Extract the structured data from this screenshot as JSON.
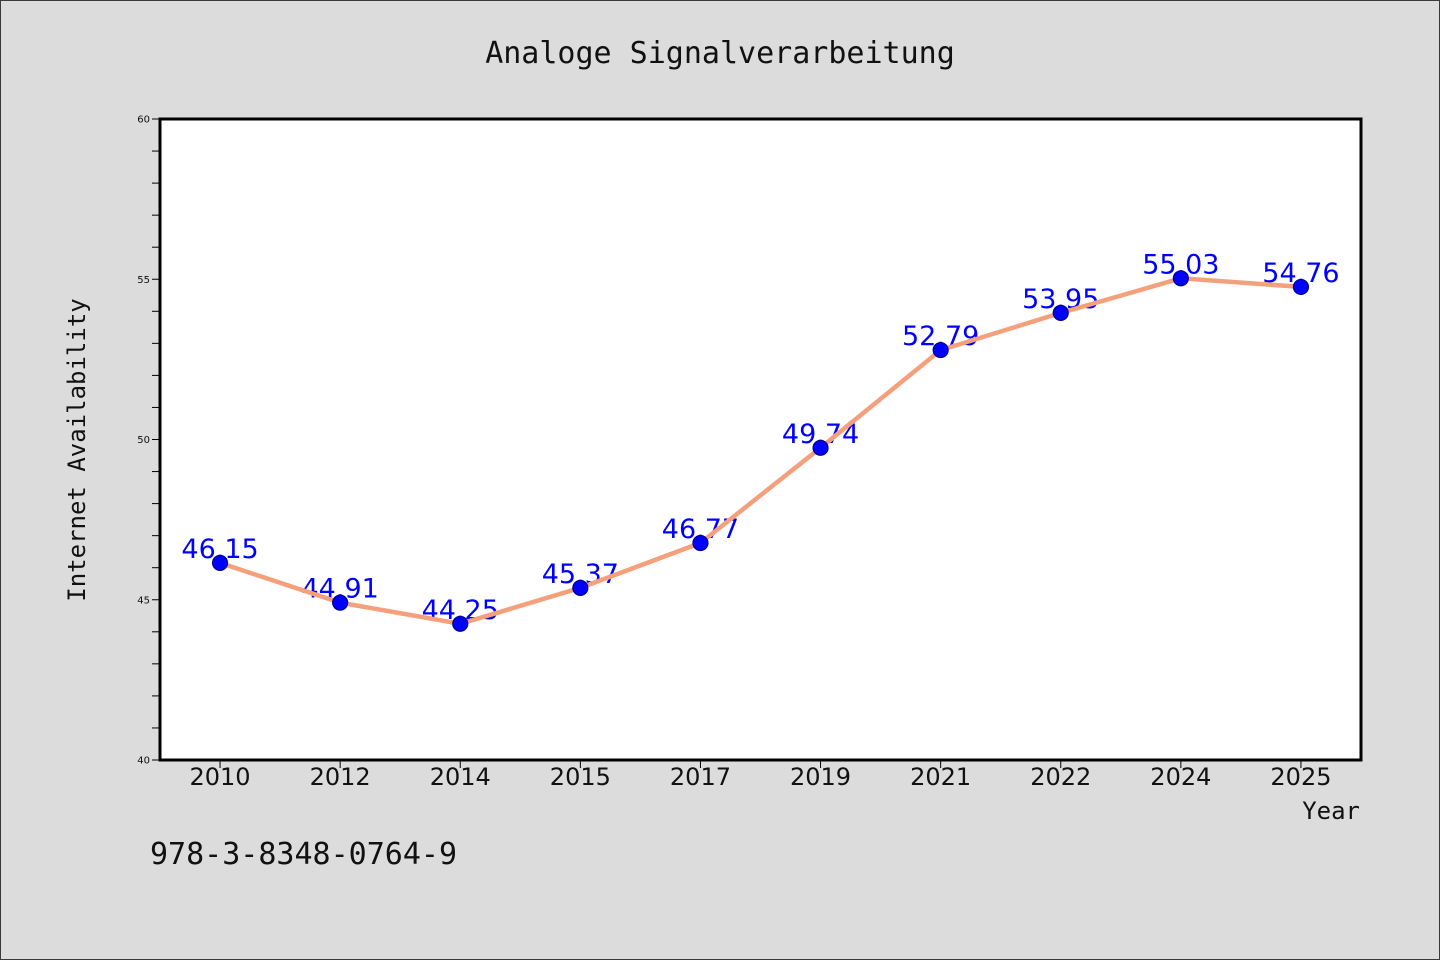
{
  "chart_data": {
    "type": "line",
    "title": "Analoge Signalverarbeitung",
    "xlabel": "Year",
    "ylabel": "Internet Availability",
    "categories": [
      "2010",
      "2012",
      "2014",
      "2015",
      "2017",
      "2019",
      "2021",
      "2022",
      "2024",
      "2025"
    ],
    "series": [
      {
        "values": [
          46.15,
          44.91,
          44.25,
          45.37,
          46.77,
          49.74,
          52.79,
          53.95,
          55.03,
          54.76
        ]
      }
    ],
    "ylim": [
      40,
      60
    ],
    "yticks": [
      40,
      45,
      50,
      55,
      60
    ],
    "y_minor_tick_step": 1,
    "grid": false,
    "data_labels": true,
    "colors": {
      "page_background": "#dcdcdc",
      "plot_background": "#ffffff",
      "axes": "#000000",
      "line": "#f5a07c",
      "marker": "#0000ff",
      "marker_edge": "#00008b",
      "data_label": "#0000ff",
      "text": "#111111"
    }
  },
  "footer": {
    "isbn": "978-3-8348-0764-9"
  }
}
